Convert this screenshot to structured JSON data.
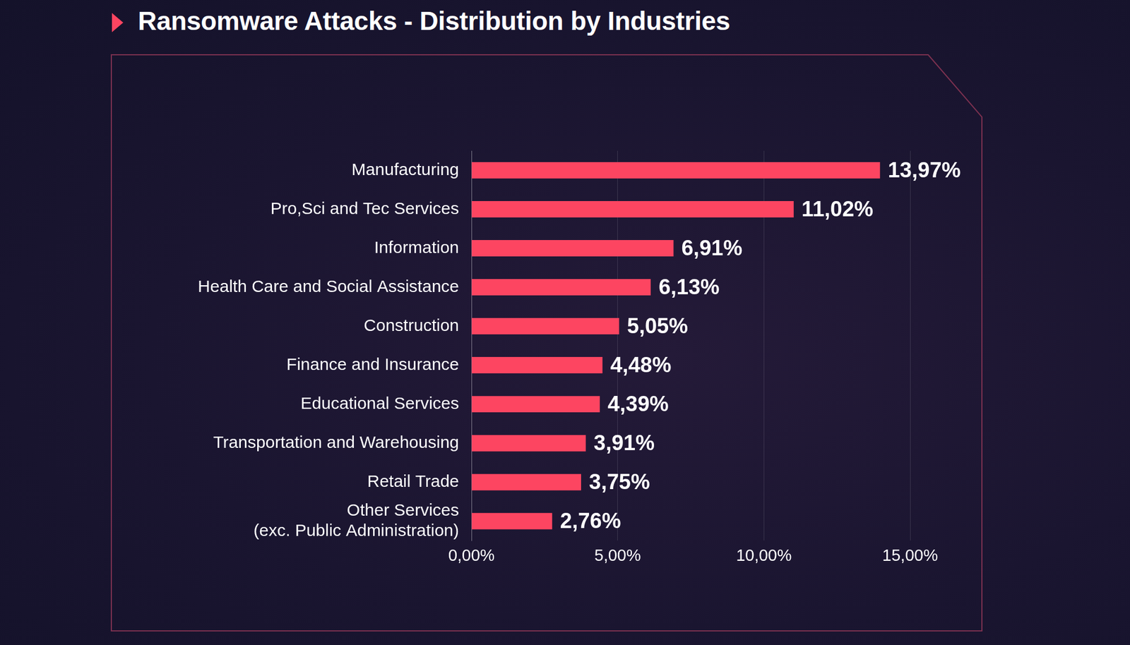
{
  "chart_data": {
    "type": "bar",
    "orientation": "horizontal",
    "title": "Ransomware Attacks - Distribution by Industries",
    "categories": [
      "Manufacturing",
      "Pro,Sci and Tec Services",
      "Information",
      "Health Care and Social Assistance",
      "Construction",
      "Finance and Insurance",
      "Educational Services",
      "Transportation and Warehousing",
      "Retail Trade",
      "Other Services\n(exc. Public Administration)"
    ],
    "values": [
      13.97,
      11.02,
      6.91,
      6.13,
      5.05,
      4.48,
      4.39,
      3.91,
      3.75,
      2.76
    ],
    "value_labels": [
      "13,97%",
      "11,02%",
      "6,91%",
      "6,13%",
      "5,05%",
      "4,48%",
      "4,39%",
      "3,91%",
      "3,75%",
      "2,76%"
    ],
    "color": "#fd4561",
    "xlim": [
      0,
      15
    ],
    "xticks": [
      {
        "value": 0,
        "label": "0,00%"
      },
      {
        "value": 5,
        "label": "5,00%"
      },
      {
        "value": 10,
        "label": "10,00%"
      },
      {
        "value": 15,
        "label": "15,00%"
      }
    ],
    "grid": true,
    "data_labels": true
  }
}
